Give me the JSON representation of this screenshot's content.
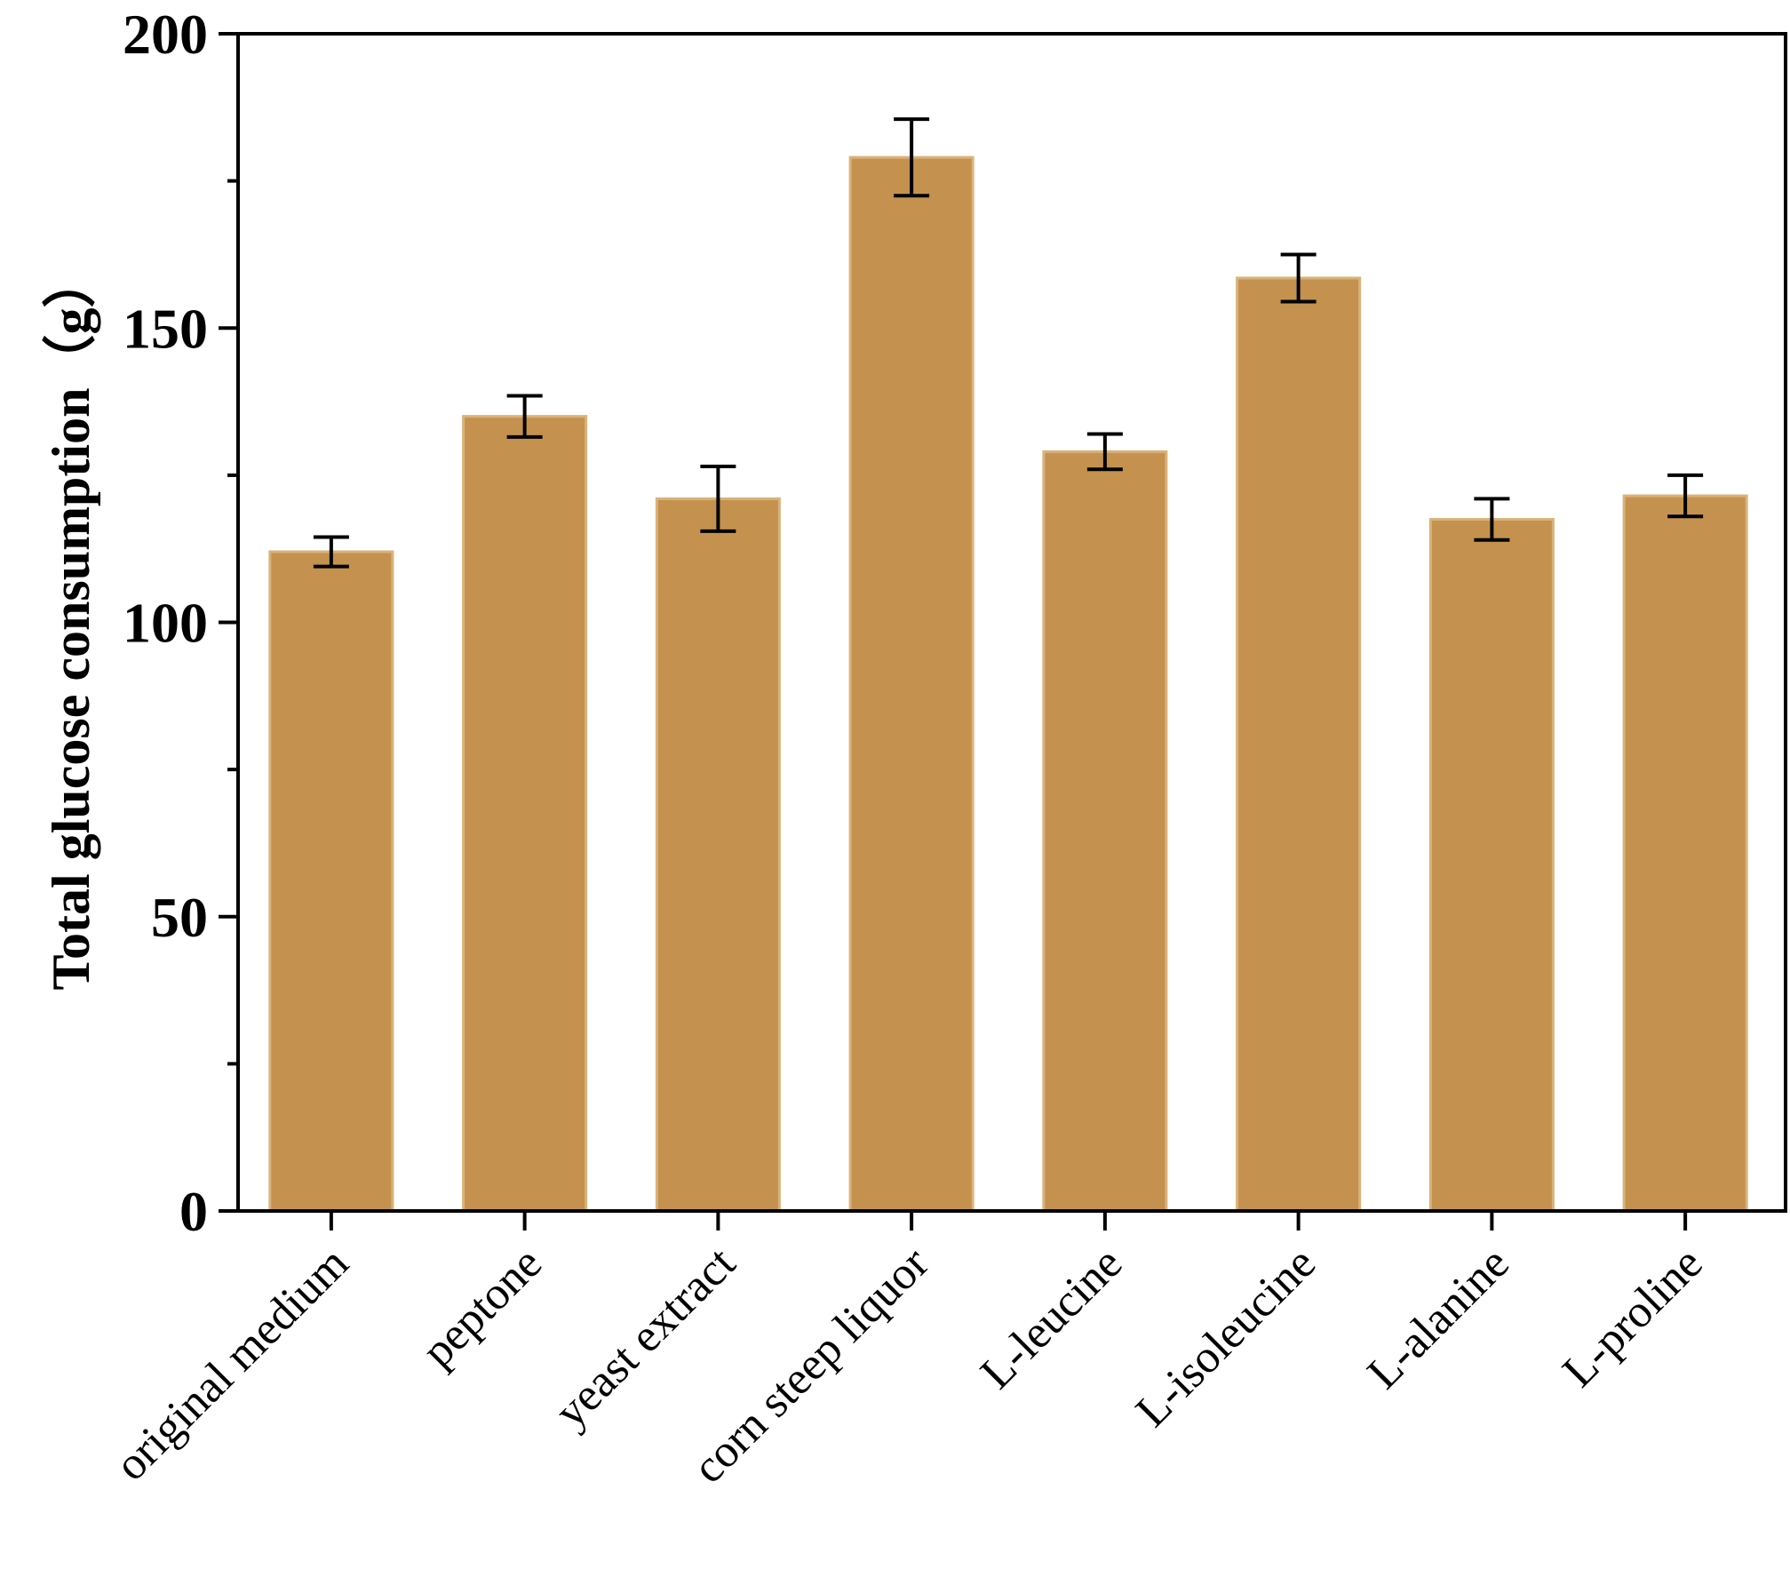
{
  "chart_data": {
    "type": "bar",
    "title": "",
    "xlabel": "",
    "ylabel": "Total glucose consumption（g）",
    "categories": [
      "original medium",
      "peptone",
      "yeast extract",
      "corn steep liquor",
      "L-leucine",
      "L-isoleucine",
      "L-alanine",
      "L-proline"
    ],
    "values": [
      112,
      135,
      121,
      179,
      129,
      158.5,
      117.5,
      121.5
    ],
    "errors": [
      2.5,
      3.5,
      5.5,
      6.5,
      3.0,
      4.0,
      3.5,
      3.5
    ],
    "ylim": [
      0,
      200
    ],
    "yticks_major": [
      0,
      50,
      100,
      150,
      200
    ],
    "yticks_minor": [
      25,
      75,
      125,
      175
    ],
    "grid": false,
    "legend": "none",
    "colors": {
      "bar": "#c4924e",
      "bar_edge": "#d9b27a",
      "axis": "#000000",
      "error_bar": "#000000"
    }
  }
}
